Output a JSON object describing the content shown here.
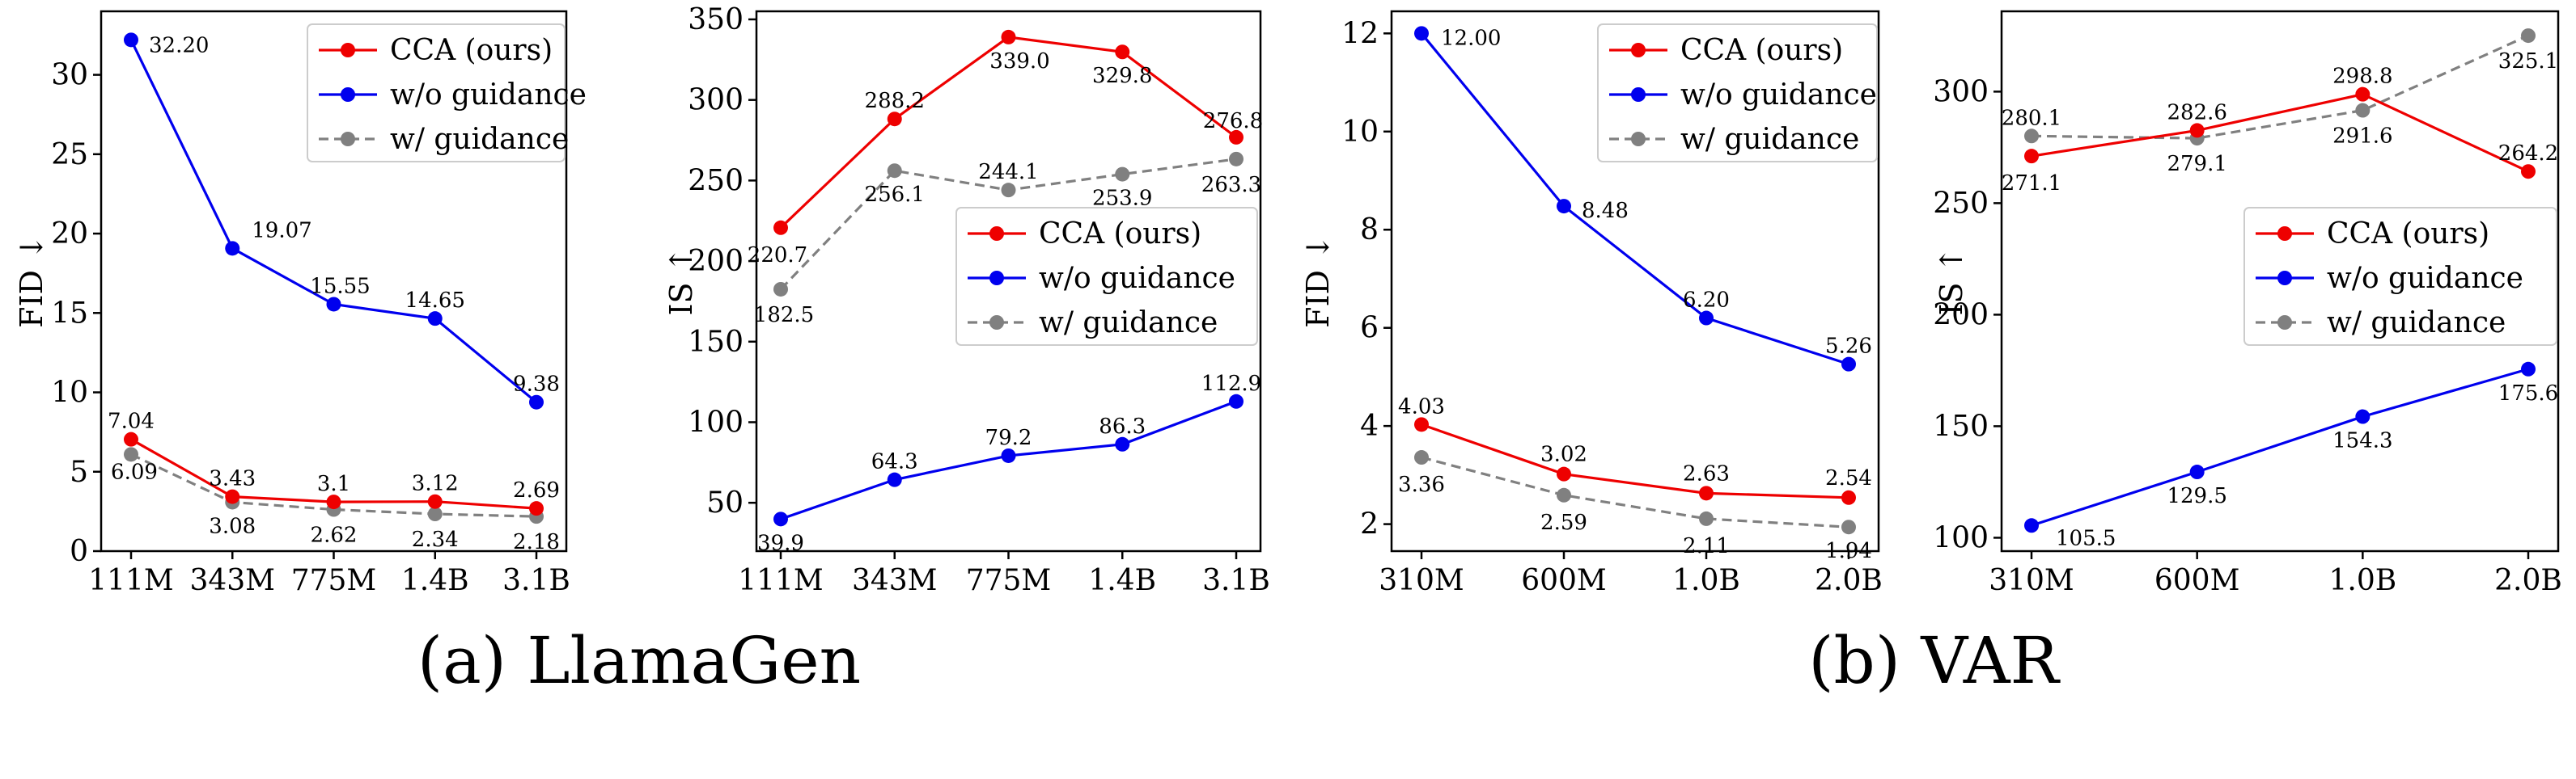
{
  "captions": {
    "a": "(a) LlamaGen",
    "b": "(b) VAR"
  },
  "colors": {
    "cca": "#ee0000",
    "without": "#0000ee",
    "with": "#808080"
  },
  "chart_data": [
    {
      "type": "line",
      "panel": "LlamaGen FID",
      "categories": [
        "111M",
        "343M",
        "775M",
        "1.4B",
        "3.1B"
      ],
      "ylabel": "FID ↓",
      "ylim": [
        0,
        34
      ],
      "yticks": [
        0,
        5,
        10,
        15,
        20,
        25,
        30
      ],
      "legend_position": "top-right",
      "series": [
        {
          "name": "CCA (ours)",
          "values": [
            7.04,
            3.43,
            3.1,
            3.12,
            2.69
          ],
          "labels": [
            "7.04",
            "3.43",
            "3.1",
            "3.12",
            "2.69"
          ]
        },
        {
          "name": "w/o guidance",
          "values": [
            32.2,
            19.07,
            15.55,
            14.65,
            9.38
          ],
          "labels": [
            "32.20",
            "19.07",
            "15.55",
            "14.65",
            "9.38"
          ]
        },
        {
          "name": "w/ guidance",
          "dashed": true,
          "values": [
            6.09,
            3.08,
            2.62,
            2.34,
            2.18
          ],
          "labels": [
            "6.09",
            "3.08",
            "2.62",
            "2.34",
            "2.18"
          ]
        }
      ]
    },
    {
      "type": "line",
      "panel": "LlamaGen IS",
      "categories": [
        "111M",
        "343M",
        "775M",
        "1.4B",
        "3.1B"
      ],
      "ylabel": "IS ↑",
      "ylim": [
        20,
        355
      ],
      "yticks": [
        50,
        100,
        150,
        200,
        250,
        300,
        350
      ],
      "legend_position": "center-right",
      "series": [
        {
          "name": "CCA (ours)",
          "values": [
            220.7,
            288.2,
            339.0,
            329.8,
            276.8
          ],
          "labels": [
            "220.7",
            "288.2",
            "339.0",
            "329.8",
            "276.8"
          ]
        },
        {
          "name": "w/o guidance",
          "values": [
            39.9,
            64.3,
            79.2,
            86.3,
            112.9
          ],
          "labels": [
            "39.9",
            "64.3",
            "79.2",
            "86.3",
            "112.9"
          ]
        },
        {
          "name": "w/ guidance",
          "dashed": true,
          "values": [
            182.5,
            256.1,
            244.1,
            253.9,
            263.3
          ],
          "labels": [
            "182.5",
            "256.1",
            "244.1",
            "253.9",
            "263.3"
          ]
        }
      ]
    },
    {
      "type": "line",
      "panel": "VAR FID",
      "categories": [
        "310M",
        "600M",
        "1.0B",
        "2.0B"
      ],
      "ylabel": "FID ↓",
      "ylim": [
        1.45,
        12.45
      ],
      "yticks": [
        2,
        4,
        6,
        8,
        10,
        12
      ],
      "legend_position": "top-right",
      "series": [
        {
          "name": "CCA (ours)",
          "values": [
            4.03,
            3.02,
            2.63,
            2.54
          ],
          "labels": [
            "4.03",
            "3.02",
            "2.63",
            "2.54"
          ]
        },
        {
          "name": "w/o guidance",
          "values": [
            12.0,
            8.48,
            6.2,
            5.26
          ],
          "labels": [
            "12.00",
            "8.48",
            "6.20",
            "5.26"
          ]
        },
        {
          "name": "w/ guidance",
          "dashed": true,
          "values": [
            3.36,
            2.59,
            2.11,
            1.94
          ],
          "labels": [
            "3.36",
            "2.59",
            "2.11",
            "1.94"
          ]
        }
      ]
    },
    {
      "type": "line",
      "panel": "VAR IS",
      "categories": [
        "310M",
        "600M",
        "1.0B",
        "2.0B"
      ],
      "ylabel": "IS ↑",
      "ylim": [
        94,
        336
      ],
      "yticks": [
        100,
        150,
        200,
        250,
        300
      ],
      "legend_position": "center-right",
      "series": [
        {
          "name": "CCA (ours)",
          "values": [
            271.1,
            282.6,
            298.8,
            264.2
          ],
          "labels": [
            "271.1",
            "282.6",
            "298.8",
            "264.2"
          ]
        },
        {
          "name": "w/o guidance",
          "values": [
            105.5,
            129.5,
            154.3,
            175.6
          ],
          "labels": [
            "105.5",
            "129.5",
            "154.3",
            "175.6"
          ]
        },
        {
          "name": "w/ guidance",
          "dashed": true,
          "values": [
            280.1,
            279.1,
            291.6,
            325.1
          ],
          "labels": [
            "280.1",
            "279.1",
            "291.6",
            "325.1"
          ]
        }
      ]
    }
  ]
}
